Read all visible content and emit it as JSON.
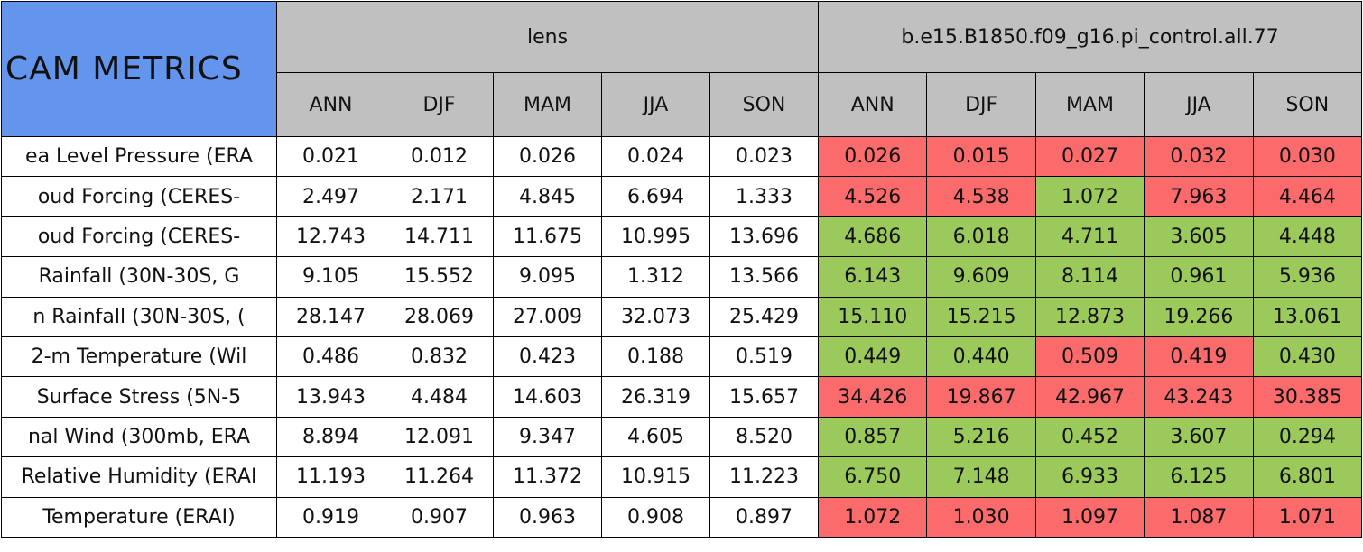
{
  "header": {
    "title": "CAM METRICS",
    "groups": [
      "lens",
      "b.e15.B1850.f09_g16.pi_control.all.77"
    ],
    "seasons": [
      [
        "ANN",
        "DJF",
        "MAM",
        "JJA",
        "SON"
      ],
      [
        "ANN",
        "DJF",
        "MAM",
        "JJA",
        "SON"
      ]
    ]
  },
  "table": {
    "rows": [
      {
        "label": "ea Level Pressure (ERA",
        "cells": [
          "0.021",
          "0.012",
          "0.026",
          "0.024",
          "0.023",
          "0.026",
          "0.015",
          "0.027",
          "0.032",
          "0.030"
        ],
        "fills": [
          "#ffffff",
          "#ffffff",
          "#ffffff",
          "#ffffff",
          "#ffffff",
          "#fb6b6b",
          "#fb6b6b",
          "#fb6b6b",
          "#fb6b6b",
          "#fb6b6b"
        ]
      },
      {
        "label": "oud Forcing (CERES-",
        "cells": [
          "2.497",
          "2.171",
          "4.845",
          "6.694",
          "1.333",
          "4.526",
          "4.538",
          "1.072",
          "7.963",
          "4.464"
        ],
        "fills": [
          "#ffffff",
          "#ffffff",
          "#ffffff",
          "#ffffff",
          "#ffffff",
          "#fb6b6b",
          "#fb6b6b",
          "#9bc95b",
          "#fb6b6b",
          "#fb6b6b"
        ]
      },
      {
        "label": "oud Forcing (CERES-",
        "cells": [
          "12.743",
          "14.711",
          "11.675",
          "10.995",
          "13.696",
          "4.686",
          "6.018",
          "4.711",
          "3.605",
          "4.448"
        ],
        "fills": [
          "#ffffff",
          "#ffffff",
          "#ffffff",
          "#ffffff",
          "#ffffff",
          "#9bc95b",
          "#9bc95b",
          "#9bc95b",
          "#9bc95b",
          "#9bc95b"
        ]
      },
      {
        "label": "Rainfall (30N-30S, G",
        "cells": [
          "9.105",
          "15.552",
          "9.095",
          "1.312",
          "13.566",
          "6.143",
          "9.609",
          "8.114",
          "0.961",
          "5.936"
        ],
        "fills": [
          "#ffffff",
          "#ffffff",
          "#ffffff",
          "#ffffff",
          "#ffffff",
          "#9bc95b",
          "#9bc95b",
          "#9bc95b",
          "#9bc95b",
          "#9bc95b"
        ]
      },
      {
        "label": "n Rainfall (30N-30S, (",
        "cells": [
          "28.147",
          "28.069",
          "27.009",
          "32.073",
          "25.429",
          "15.110",
          "15.215",
          "12.873",
          "19.266",
          "13.061"
        ],
        "fills": [
          "#ffffff",
          "#ffffff",
          "#ffffff",
          "#ffffff",
          "#ffffff",
          "#9bc95b",
          "#9bc95b",
          "#9bc95b",
          "#9bc95b",
          "#9bc95b"
        ]
      },
      {
        "label": "2-m Temperature (Wil",
        "cells": [
          "0.486",
          "0.832",
          "0.423",
          "0.188",
          "0.519",
          "0.449",
          "0.440",
          "0.509",
          "0.419",
          "0.430"
        ],
        "fills": [
          "#ffffff",
          "#ffffff",
          "#ffffff",
          "#ffffff",
          "#ffffff",
          "#9bc95b",
          "#9bc95b",
          "#fb6b6b",
          "#fb6b6b",
          "#9bc95b"
        ]
      },
      {
        "label": "Surface Stress (5N-5",
        "cells": [
          "13.943",
          "4.484",
          "14.603",
          "26.319",
          "15.657",
          "34.426",
          "19.867",
          "42.967",
          "43.243",
          "30.385"
        ],
        "fills": [
          "#ffffff",
          "#ffffff",
          "#ffffff",
          "#ffffff",
          "#ffffff",
          "#fb6b6b",
          "#fb6b6b",
          "#fb6b6b",
          "#fb6b6b",
          "#fb6b6b"
        ]
      },
      {
        "label": "nal Wind (300mb, ERA",
        "cells": [
          "8.894",
          "12.091",
          "9.347",
          "4.605",
          "8.520",
          "0.857",
          "5.216",
          "0.452",
          "3.607",
          "0.294"
        ],
        "fills": [
          "#ffffff",
          "#ffffff",
          "#ffffff",
          "#ffffff",
          "#ffffff",
          "#9bc95b",
          "#9bc95b",
          "#9bc95b",
          "#9bc95b",
          "#9bc95b"
        ]
      },
      {
        "label": "Relative Humidity (ERAI",
        "cells": [
          "11.193",
          "11.264",
          "11.372",
          "10.915",
          "11.223",
          "6.750",
          "7.148",
          "6.933",
          "6.125",
          "6.801"
        ],
        "fills": [
          "#ffffff",
          "#ffffff",
          "#ffffff",
          "#ffffff",
          "#ffffff",
          "#9bc95b",
          "#9bc95b",
          "#9bc95b",
          "#9bc95b",
          "#9bc95b"
        ]
      },
      {
        "label": "Temperature (ERAI)",
        "cells": [
          "0.919",
          "0.907",
          "0.963",
          "0.908",
          "0.897",
          "1.072",
          "1.030",
          "1.097",
          "1.087",
          "1.071"
        ],
        "fills": [
          "#ffffff",
          "#ffffff",
          "#ffffff",
          "#ffffff",
          "#ffffff",
          "#fb6b6b",
          "#fb6b6b",
          "#fb6b6b",
          "#fb6b6b",
          "#fb6b6b"
        ]
      }
    ]
  }
}
